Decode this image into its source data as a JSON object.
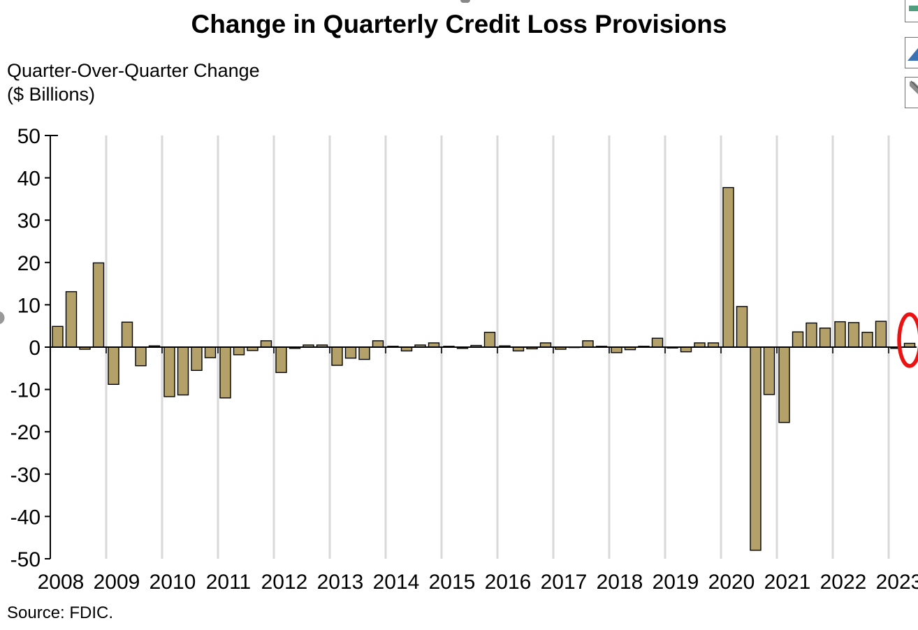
{
  "header": {
    "title": "Change in Quarterly Credit Loss Provisions",
    "subtitle_line1": "Quarter-Over-Quarter Change",
    "subtitle_line2": "($ Billions)"
  },
  "footer": {
    "source": "Source: FDIC."
  },
  "toolbar": {
    "buttons": [
      {
        "icon": "green-bar-segment-icon"
      },
      {
        "icon": "blue-area-chart-icon"
      },
      {
        "icon": "gray-pencil-icon"
      }
    ],
    "icon_colors": {
      "green": "#4f9e7e",
      "blue": "#3a72b4",
      "gray": "#8c8c8c"
    }
  },
  "chart_data": {
    "type": "bar",
    "title": "Change in Quarterly Credit Loss Provisions",
    "subtitle": "Quarter-Over-Quarter Change",
    "units_label": "($ Billions)",
    "xlabel": "",
    "ylabel": "Quarter-Over-Quarter Change ($ Billions)",
    "ylim": [
      -50,
      50
    ],
    "yticks": [
      50,
      40,
      30,
      20,
      10,
      0,
      -10,
      -20,
      -30,
      -40,
      -50
    ],
    "grid": "vertical-year-gridlines",
    "legend": "none",
    "bar_color": "#b3a169",
    "bar_border_color": "#000000",
    "gridline_color": "#d9d9d9",
    "highlight": {
      "type": "ellipse",
      "color": "#ec1212",
      "target_index": 61,
      "note": "red ellipse circling last bar (2023 Q2)"
    },
    "x_year_labels": [
      "2008",
      "2009",
      "2010",
      "2011",
      "2012",
      "2013",
      "2014",
      "2015",
      "2016",
      "2017",
      "2018",
      "2019",
      "2020",
      "2021",
      "2022",
      "2023"
    ],
    "categories": [
      "2008 Q1",
      "2008 Q2",
      "2008 Q3",
      "2008 Q4",
      "2009 Q1",
      "2009 Q2",
      "2009 Q3",
      "2009 Q4",
      "2010 Q1",
      "2010 Q2",
      "2010 Q3",
      "2010 Q4",
      "2011 Q1",
      "2011 Q2",
      "2011 Q3",
      "2011 Q4",
      "2012 Q1",
      "2012 Q2",
      "2012 Q3",
      "2012 Q4",
      "2013 Q1",
      "2013 Q2",
      "2013 Q3",
      "2013 Q4",
      "2014 Q1",
      "2014 Q2",
      "2014 Q3",
      "2014 Q4",
      "2015 Q1",
      "2015 Q2",
      "2015 Q3",
      "2015 Q4",
      "2016 Q1",
      "2016 Q2",
      "2016 Q3",
      "2016 Q4",
      "2017 Q1",
      "2017 Q2",
      "2017 Q3",
      "2017 Q4",
      "2018 Q1",
      "2018 Q2",
      "2018 Q3",
      "2018 Q4",
      "2019 Q1",
      "2019 Q2",
      "2019 Q3",
      "2019 Q4",
      "2020 Q1",
      "2020 Q2",
      "2020 Q3",
      "2020 Q4",
      "2021 Q1",
      "2021 Q2",
      "2021 Q3",
      "2021 Q4",
      "2022 Q1",
      "2022 Q2",
      "2022 Q3",
      "2022 Q4",
      "2023 Q1",
      "2023 Q2"
    ],
    "values": [
      4.9,
      13.1,
      -0.5,
      19.9,
      -8.8,
      5.9,
      -4.4,
      0.3,
      -11.7,
      -11.3,
      -5.5,
      -2.5,
      -12.0,
      -1.8,
      -0.8,
      1.5,
      -6.0,
      -0.3,
      0.5,
      0.5,
      -4.3,
      -2.6,
      -2.9,
      1.5,
      0.2,
      -0.9,
      0.5,
      1.0,
      0.2,
      -0.3,
      0.4,
      3.5,
      0.3,
      -0.9,
      -0.4,
      1.0,
      -0.5,
      -0.1,
      1.5,
      0.2,
      -1.3,
      -0.6,
      0.2,
      2.1,
      -0.2,
      -1.1,
      1.0,
      1.0,
      37.7,
      9.6,
      -48.0,
      -11.2,
      -17.8,
      3.6,
      5.7,
      4.5,
      6.0,
      5.8,
      3.5,
      6.1,
      -0.3,
      0.9
    ]
  }
}
